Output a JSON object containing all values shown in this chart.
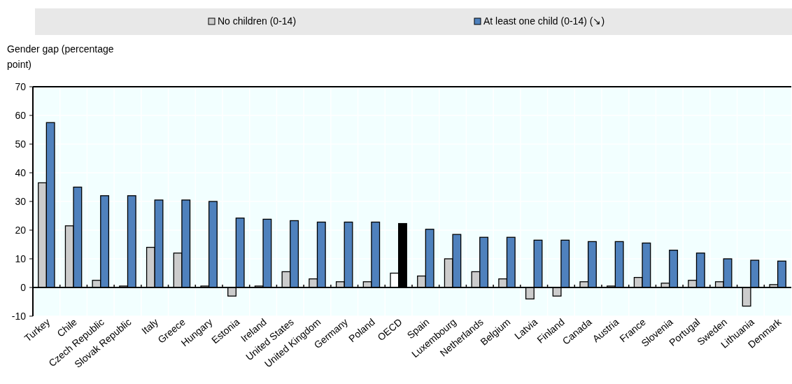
{
  "chart_data": {
    "type": "bar",
    "ylabel": "Gender gap (percentage point)",
    "categories": [
      "Turkey",
      "Chile",
      "Czech Republic",
      "Slovak Republic",
      "Italy",
      "Greece",
      "Hungary",
      "Estonia",
      "Ireland",
      "United States",
      "United Kingdom",
      "Germany",
      "Poland",
      "OECD",
      "Spain",
      "Luxembourg",
      "Netherlands",
      "Belgium",
      "Latvia",
      "Finland",
      "Canada",
      "Austria",
      "France",
      "Slovenia",
      "Portugal",
      "Sweden",
      "Lithuania",
      "Denmark"
    ],
    "series": [
      {
        "name": "No children (0-14)",
        "color": "#cccccc",
        "colors": [
          "#cccccc",
          "#cccccc",
          "#cccccc",
          "#cccccc",
          "#cccccc",
          "#cccccc",
          "#cccccc",
          "#cccccc",
          "#cccccc",
          "#cccccc",
          "#cccccc",
          "#cccccc",
          "#cccccc",
          "#ffffff",
          "#cccccc",
          "#cccccc",
          "#cccccc",
          "#cccccc",
          "#cccccc",
          "#cccccc",
          "#cccccc",
          "#cccccc",
          "#cccccc",
          "#cccccc",
          "#cccccc",
          "#cccccc",
          "#cccccc",
          "#cccccc"
        ],
        "values": [
          36.5,
          21.5,
          2.5,
          0.5,
          14,
          12,
          0.5,
          -3,
          0.5,
          5.5,
          3,
          2,
          2,
          5,
          4,
          10,
          5.5,
          3,
          -4,
          -3,
          2,
          0.5,
          3.5,
          1.5,
          2.5,
          2,
          -6.5,
          1
        ]
      },
      {
        "name": "At least one child (0-14) (↘)",
        "color": "#4f81bd",
        "colors": [
          "#4f81bd",
          "#4f81bd",
          "#4f81bd",
          "#4f81bd",
          "#4f81bd",
          "#4f81bd",
          "#4f81bd",
          "#4f81bd",
          "#4f81bd",
          "#4f81bd",
          "#4f81bd",
          "#4f81bd",
          "#4f81bd",
          "#000000",
          "#4f81bd",
          "#4f81bd",
          "#4f81bd",
          "#4f81bd",
          "#4f81bd",
          "#4f81bd",
          "#4f81bd",
          "#4f81bd",
          "#4f81bd",
          "#4f81bd",
          "#4f81bd",
          "#4f81bd",
          "#4f81bd",
          "#4f81bd"
        ],
        "values": [
          57.5,
          35,
          32,
          32,
          30.5,
          30.5,
          30,
          24.2,
          23.8,
          23.3,
          22.8,
          22.8,
          22.8,
          22.3,
          20.3,
          18.5,
          17.5,
          17.5,
          16.5,
          16.5,
          16,
          16,
          15.5,
          13,
          12,
          10,
          9.5,
          9.2
        ]
      }
    ],
    "ylim": [
      -10,
      70
    ],
    "yticks": [
      -10,
      0,
      10,
      20,
      30,
      40,
      50,
      60,
      70
    ],
    "grid": true,
    "legend": "top"
  }
}
